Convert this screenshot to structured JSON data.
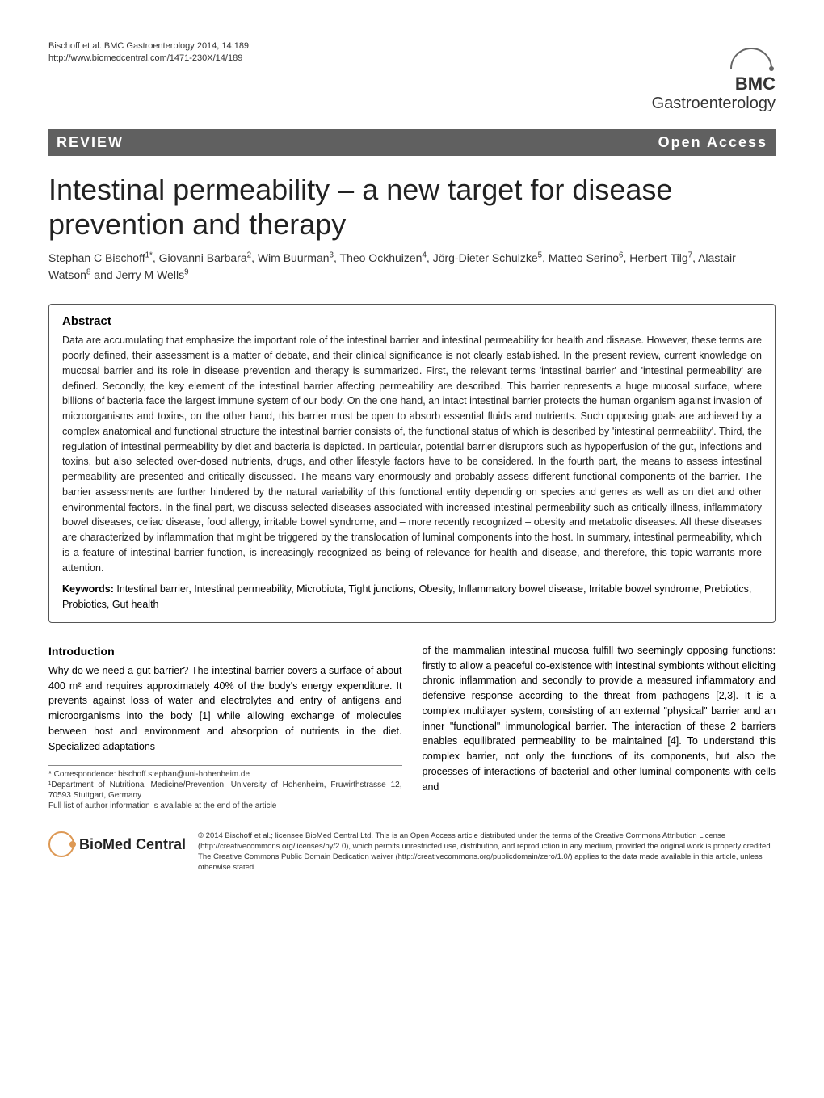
{
  "header": {
    "citation_line1": "Bischoff et al. BMC Gastroenterology 2014, 14:189",
    "citation_line2": "http://www.biomedcentral.com/1471-230X/14/189",
    "logo_prefix": "BMC",
    "logo_journal": "Gastroenterology"
  },
  "review_bar": {
    "left": "REVIEW",
    "right": "Open Access"
  },
  "title": "Intestinal permeability – a new target for disease prevention and therapy",
  "authors_html": "Stephan C Bischoff<sup>1*</sup>, Giovanni Barbara<sup>2</sup>, Wim Buurman<sup>3</sup>, Theo Ockhuizen<sup>4</sup>, Jörg-Dieter Schulzke<sup>5</sup>, Matteo Serino<sup>6</sup>, Herbert Tilg<sup>7</sup>, Alastair Watson<sup>8</sup> and Jerry M Wells<sup>9</sup>",
  "abstract": {
    "heading": "Abstract",
    "text": "Data are accumulating that emphasize the important role of the intestinal barrier and intestinal permeability for health and disease. However, these terms are poorly defined, their assessment is a matter of debate, and their clinical significance is not clearly established. In the present review, current knowledge on mucosal barrier and its role in disease prevention and therapy is summarized. First, the relevant terms 'intestinal barrier' and 'intestinal permeability' are defined. Secondly, the key element of the intestinal barrier affecting permeability are described. This barrier represents a huge mucosal surface, where billions of bacteria face the largest immune system of our body. On the one hand, an intact intestinal barrier protects the human organism against invasion of microorganisms and toxins, on the other hand, this barrier must be open to absorb essential fluids and nutrients. Such opposing goals are achieved by a complex anatomical and functional structure the intestinal barrier consists of, the functional status of which is described by 'intestinal permeability'. Third, the regulation of intestinal permeability by diet and bacteria is depicted. In particular, potential barrier disruptors such as hypoperfusion of the gut, infections and toxins, but also selected over-dosed nutrients, drugs, and other lifestyle factors have to be considered. In the fourth part, the means to assess intestinal permeability are presented and critically discussed. The means vary enormously and probably assess different functional components of the barrier. The barrier assessments are further hindered by the natural variability of this functional entity depending on species and genes as well as on diet and other environmental factors. In the final part, we discuss selected diseases associated with increased intestinal permeability such as critically illness, inflammatory bowel diseases, celiac disease, food allergy, irritable bowel syndrome, and – more recently recognized – obesity and metabolic diseases. All these diseases are characterized by inflammation that might be triggered by the translocation of luminal components into the host. In summary, intestinal permeability, which is a feature of intestinal barrier function, is increasingly recognized as being of relevance for health and disease, and therefore, this topic warrants more attention.",
    "keywords_label": "Keywords:",
    "keywords": " Intestinal barrier, Intestinal permeability, Microbiota, Tight junctions, Obesity, Inflammatory bowel disease, Irritable bowel syndrome, Prebiotics, Probiotics, Gut health"
  },
  "introduction": {
    "heading": "Introduction",
    "col1": "Why do we need a gut barrier? The intestinal barrier covers a surface of about 400 m² and requires approximately 40% of the body's energy expenditure. It prevents against loss of water and electrolytes and entry of antigens and microorganisms into the body [1] while allowing exchange of molecules between host and environment and absorption of nutrients in the diet. Specialized adaptations",
    "col2": "of the mammalian intestinal mucosa fulfill two seemingly opposing functions: firstly to allow a peaceful co-existence with intestinal symbionts without eliciting chronic inflammation and secondly to provide a measured inflammatory and defensive response according to the threat from pathogens [2,3]. It is a complex multilayer system, consisting of an external \"physical\" barrier and an inner \"functional\" immunological barrier. The interaction of these 2 barriers enables equilibrated permeability to be maintained [4]. To understand this complex barrier, not only the functions of its components, but also the processes of interactions of bacterial and other luminal components with cells and"
  },
  "footnote": {
    "correspondence": "* Correspondence: bischoff.stephan@uni-hohenheim.de",
    "affiliation": "¹Department of Nutritional Medicine/Prevention, University of Hohenheim, Fruwirthstrasse 12, 70593 Stuttgart, Germany",
    "full_list": "Full list of author information is available at the end of the article"
  },
  "footer": {
    "bmc_label": "BioMed Central",
    "license": "© 2014 Bischoff et al.; licensee BioMed Central Ltd. This is an Open Access article distributed under the terms of the Creative Commons Attribution License (http://creativecommons.org/licenses/by/2.0), which permits unrestricted use, distribution, and reproduction in any medium, provided the original work is properly credited. The Creative Commons Public Domain Dedication waiver (http://creativecommons.org/publicdomain/zero/1.0/) applies to the data made available in this article, unless otherwise stated."
  },
  "colors": {
    "bar_bg": "#606060",
    "text": "#000000",
    "logo_accent": "#d95"
  }
}
